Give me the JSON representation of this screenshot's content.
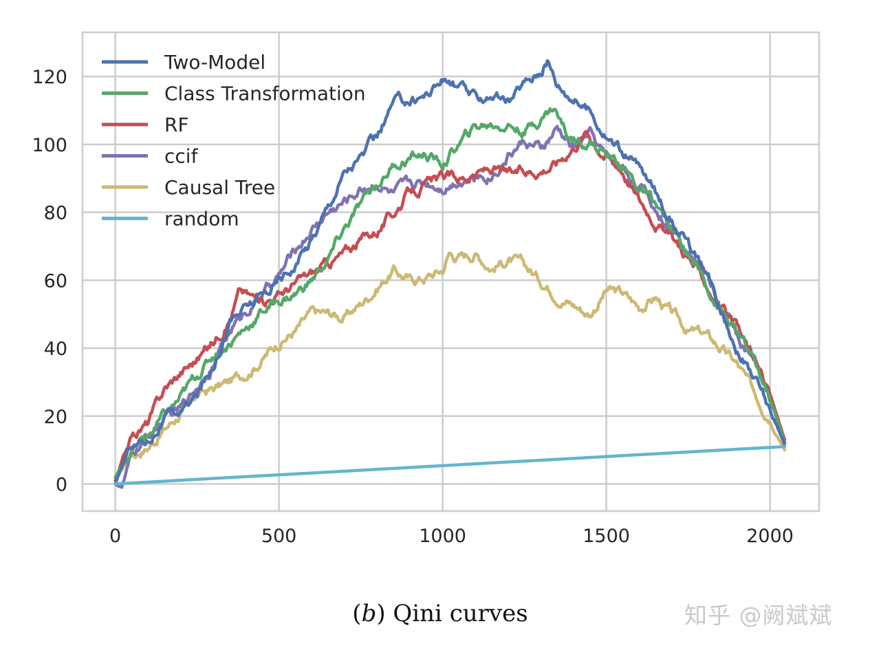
{
  "caption": {
    "open": "(",
    "letter": "b",
    "close": ")",
    "text": "Qini curves"
  },
  "watermark": "知乎 @阙斌斌",
  "colors": {
    "Two-Model": "#4c72b0",
    "Class Transformation": "#55a868",
    "RF": "#c44e52",
    "ccif": "#8172b2",
    "Causal Tree": "#ccb974",
    "random": "#64b5cd",
    "grid": "#cccccc",
    "frame": "#cccccc"
  },
  "chart_data": {
    "type": "line",
    "title": "",
    "xlabel": "",
    "ylabel": "",
    "xlim": [
      -100,
      2150
    ],
    "ylim": [
      -8,
      133
    ],
    "xticks": [
      "0",
      "500",
      "1000",
      "1500",
      "2000"
    ],
    "yticks": [
      "0",
      "20",
      "40",
      "60",
      "80",
      "100",
      "120"
    ],
    "grid": true,
    "legend_position": "top-left",
    "series": [
      {
        "name": "Two-Model",
        "x": [
          0,
          50,
          100,
          150,
          200,
          250,
          300,
          350,
          400,
          450,
          500,
          550,
          600,
          650,
          700,
          750,
          800,
          850,
          900,
          950,
          1000,
          1050,
          1100,
          1150,
          1200,
          1250,
          1300,
          1320,
          1350,
          1400,
          1450,
          1500,
          1550,
          1600,
          1650,
          1700,
          1750,
          1800,
          1850,
          1900,
          1950,
          2000,
          2045
        ],
        "y": [
          0,
          12,
          13,
          19,
          21,
          26,
          36,
          48,
          52,
          55,
          60,
          65,
          72,
          82,
          92,
          96,
          102,
          112,
          113,
          115,
          119,
          117,
          113,
          115,
          112,
          118,
          122,
          125,
          118,
          114,
          110,
          103,
          98,
          93,
          86,
          78,
          70,
          62,
          52,
          40,
          32,
          22,
          12
        ]
      },
      {
        "name": "Class Transformation",
        "x": [
          0,
          50,
          100,
          150,
          200,
          250,
          300,
          350,
          400,
          450,
          500,
          550,
          600,
          650,
          700,
          750,
          800,
          850,
          900,
          950,
          1000,
          1050,
          1100,
          1150,
          1200,
          1250,
          1300,
          1340,
          1380,
          1400,
          1450,
          1500,
          1550,
          1600,
          1650,
          1700,
          1750,
          1800,
          1850,
          1900,
          1950,
          2000,
          2045
        ],
        "y": [
          2,
          10,
          14,
          20,
          25,
          32,
          38,
          42,
          46,
          51,
          54,
          56,
          60,
          66,
          75,
          82,
          88,
          94,
          96,
          97,
          94,
          100,
          105,
          106,
          106,
          104,
          108,
          111,
          103,
          102,
          101,
          97,
          94,
          87,
          82,
          74,
          68,
          60,
          51,
          44,
          36,
          25,
          12
        ]
      },
      {
        "name": "RF",
        "x": [
          0,
          50,
          100,
          150,
          200,
          250,
          300,
          350,
          380,
          420,
          450,
          500,
          550,
          600,
          650,
          700,
          750,
          800,
          850,
          900,
          950,
          1000,
          1050,
          1100,
          1150,
          1200,
          1250,
          1300,
          1350,
          1400,
          1440,
          1500,
          1550,
          1600,
          1650,
          1700,
          1750,
          1800,
          1850,
          1900,
          1950,
          2000,
          2045
        ],
        "y": [
          1,
          14,
          18,
          28,
          33,
          37,
          42,
          49,
          57,
          55,
          54,
          56,
          59,
          62,
          65,
          68,
          72,
          75,
          80,
          86,
          88,
          90,
          90,
          91,
          93,
          91,
          92,
          93,
          95,
          100,
          104,
          97,
          93,
          84,
          78,
          72,
          67,
          60,
          52,
          45,
          37,
          26,
          13
        ]
      },
      {
        "name": "ccif",
        "x": [
          0,
          20,
          50,
          100,
          150,
          200,
          250,
          300,
          350,
          400,
          450,
          500,
          550,
          600,
          650,
          700,
          750,
          800,
          850,
          900,
          950,
          1000,
          1050,
          1100,
          1150,
          1200,
          1250,
          1300,
          1350,
          1400,
          1450,
          1500,
          1550,
          1600,
          1650,
          1700,
          1750,
          1800,
          1850,
          1900,
          1950,
          2000,
          2045
        ],
        "y": [
          0,
          -1,
          8,
          14,
          19,
          22,
          29,
          36,
          45,
          51,
          56,
          61,
          69,
          75,
          80,
          83,
          87,
          89,
          85,
          88,
          89,
          88,
          90,
          90,
          91,
          97,
          101,
          98,
          104,
          99,
          103,
          96,
          93,
          88,
          81,
          75,
          70,
          63,
          52,
          44,
          36,
          26,
          11
        ]
      },
      {
        "name": "Causal Tree",
        "x": [
          0,
          50,
          100,
          150,
          200,
          250,
          300,
          350,
          400,
          450,
          500,
          550,
          600,
          650,
          700,
          750,
          800,
          850,
          900,
          950,
          1000,
          1020,
          1050,
          1100,
          1150,
          1200,
          1250,
          1300,
          1350,
          1400,
          1450,
          1500,
          1550,
          1600,
          1650,
          1700,
          1750,
          1800,
          1850,
          1900,
          1950,
          2000,
          2045
        ],
        "y": [
          1,
          9,
          11,
          16,
          21,
          26,
          28,
          30,
          33,
          37,
          42,
          45,
          50,
          50,
          49,
          53,
          58,
          63,
          60,
          61,
          63,
          68,
          67,
          68,
          64,
          66,
          64,
          60,
          56,
          53,
          50,
          57,
          56,
          52,
          55,
          50,
          45,
          44,
          40,
          35,
          27,
          20,
          10
        ]
      },
      {
        "name": "random",
        "x": [
          0,
          2045
        ],
        "y": [
          0,
          11
        ]
      }
    ]
  }
}
